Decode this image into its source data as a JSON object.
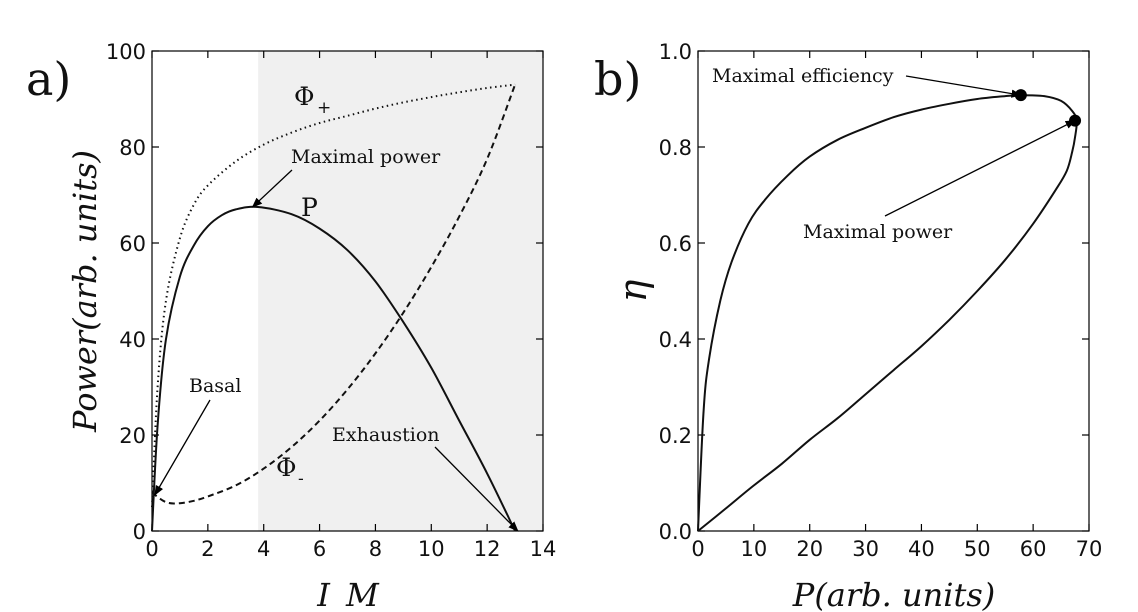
{
  "chart_data": [
    {
      "panel": "a)",
      "type": "line",
      "xlabel": "I_M",
      "ylabel": "Power(arb. units)",
      "xlim": [
        0,
        14
      ],
      "ylim": [
        0,
        100
      ],
      "xticks": [
        0,
        2,
        4,
        6,
        8,
        10,
        12,
        14
      ],
      "yticks": [
        0,
        20,
        40,
        60,
        80,
        100
      ],
      "shaded_region": {
        "x_from": 3.8,
        "x_to": 14,
        "color": "#f0f0f0"
      },
      "series": [
        {
          "name": "Φ+",
          "label_main": "Φ",
          "label_sub": "+",
          "style": "dotted",
          "x": [
            0,
            0.2,
            0.5,
            1,
            1.5,
            2,
            3,
            4,
            5,
            6,
            7,
            8,
            9,
            10,
            11,
            12,
            13
          ],
          "y": [
            5,
            30,
            48,
            61,
            68,
            72,
            77,
            80.5,
            83,
            85,
            86.5,
            88,
            89.3,
            90.4,
            91.4,
            92.3,
            93
          ]
        },
        {
          "name": "P",
          "label_main": "P",
          "style": "solid",
          "x": [
            0,
            0.2,
            0.5,
            1,
            1.5,
            2,
            2.5,
            3,
            3.8,
            5,
            6,
            7,
            8,
            9,
            10,
            11,
            12,
            13
          ],
          "y": [
            0,
            22,
            40,
            53,
            59.5,
            63.5,
            65.8,
            67,
            67.5,
            66,
            63,
            58.5,
            52,
            43.5,
            34,
            23,
            12,
            0
          ]
        },
        {
          "name": "Φ-",
          "label_main": "Φ",
          "label_sub": "-",
          "style": "dashed",
          "x": [
            0,
            0.5,
            1,
            1.5,
            2,
            3,
            4,
            5,
            6,
            7,
            8,
            9,
            10,
            11,
            12,
            13
          ],
          "y": [
            8,
            6,
            5.8,
            6.3,
            7.2,
            9.5,
            13,
            17.5,
            23,
            29.5,
            37,
            45.5,
            55,
            65.5,
            77.5,
            93
          ]
        }
      ],
      "annotations": [
        {
          "text": "Maximal power",
          "xy": [
            3.6,
            67.5
          ]
        },
        {
          "text": "Basal",
          "xy": [
            0.1,
            7.5
          ]
        },
        {
          "text": "Exhaustion",
          "xy": [
            13.1,
            0
          ]
        }
      ]
    },
    {
      "panel": "b)",
      "type": "line",
      "xlabel": "P(arb. units)",
      "ylabel": "η",
      "xlim": [
        0,
        70
      ],
      "ylim": [
        0,
        1
      ],
      "xticks": [
        0,
        10,
        20,
        30,
        40,
        50,
        60,
        70
      ],
      "yticks": [
        0.0,
        0.2,
        0.4,
        0.6,
        0.8,
        1.0
      ],
      "series": [
        {
          "name": "η vs P",
          "style": "solid",
          "x": [
            0,
            1,
            2,
            4,
            6,
            9,
            12,
            16,
            20,
            25,
            30,
            35,
            40,
            45,
            50,
            55,
            58,
            62,
            65,
            67,
            67.8,
            67.5,
            67,
            66,
            64,
            60,
            55,
            50,
            45,
            40,
            35,
            30,
            25,
            20,
            15,
            10,
            5,
            0
          ],
          "y": [
            0,
            0.25,
            0.36,
            0.48,
            0.56,
            0.64,
            0.69,
            0.74,
            0.78,
            0.815,
            0.84,
            0.862,
            0.878,
            0.89,
            0.9,
            0.906,
            0.908,
            0.906,
            0.896,
            0.875,
            0.855,
            0.82,
            0.79,
            0.75,
            0.71,
            0.64,
            0.565,
            0.5,
            0.44,
            0.385,
            0.335,
            0.285,
            0.235,
            0.19,
            0.14,
            0.095,
            0.047,
            0
          ]
        }
      ],
      "markers": [
        {
          "name": "maximal-efficiency",
          "x": 57.8,
          "y": 0.908
        },
        {
          "name": "maximal-power",
          "x": 67.5,
          "y": 0.855
        }
      ],
      "annotations": [
        {
          "text": "Maximal efficiency",
          "xy": [
            57.8,
            0.908
          ]
        },
        {
          "text": "Maximal power",
          "xy": [
            67.5,
            0.855
          ]
        }
      ]
    }
  ]
}
